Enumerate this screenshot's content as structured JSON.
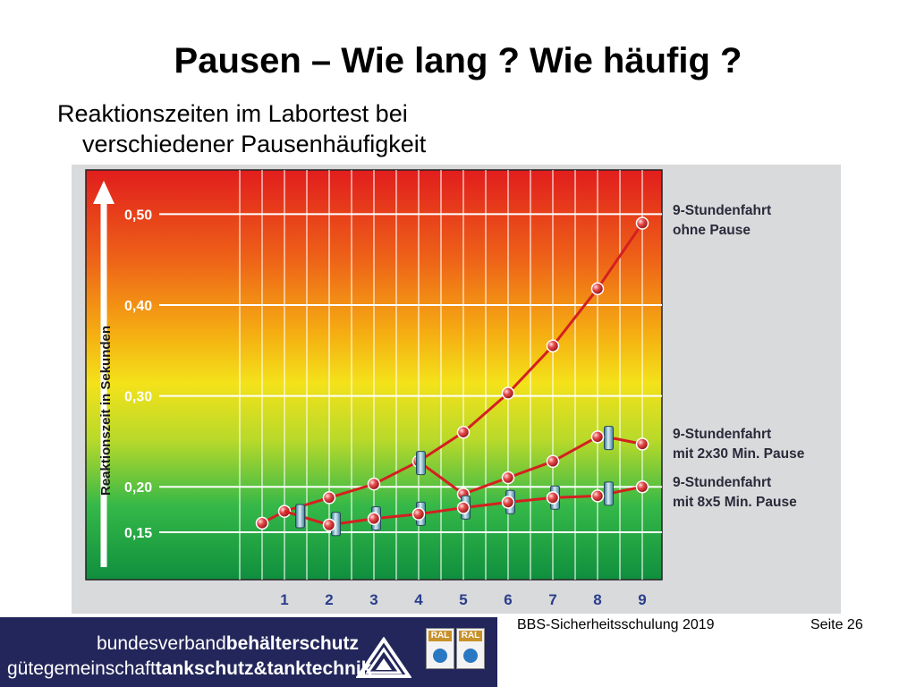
{
  "slide": {
    "title": "Pausen – Wie lang ? Wie häufig ?",
    "subtitle_line1": "Reaktionszeiten im Labortest bei",
    "subtitle_line2": "verschiedener Pausenhäufigkeit"
  },
  "footer": {
    "org_line1_light": "bundesverband",
    "org_line1_bold": "behälterschutz",
    "org_line2_light": "gütegemeinschaft",
    "org_line2_bold": "tankschutz&tanktechnik",
    "ral_badge_1": "RAL",
    "ral_badge_2": "RAL",
    "event": "BBS-Sicherheitsschulung 2019",
    "page": "Seite 26"
  },
  "chart_data": {
    "type": "line",
    "ylabel": "Reaktionszeit in Sekunden",
    "xlabel": "",
    "x": [
      1,
      2,
      3,
      4,
      5,
      6,
      7,
      8,
      9
    ],
    "x_start": 0.5,
    "ylim": [
      0.11,
      0.54
    ],
    "yticks": [
      0.15,
      0.2,
      0.3,
      0.4,
      0.5
    ],
    "ytick_labels": [
      "0,15",
      "0,20",
      "0,30",
      "0,40",
      "0,50"
    ],
    "grid": true,
    "background": "vertical gradient red (top) to yellow to green (bottom)",
    "series": [
      {
        "name": "9-Stundenfahrt ohne Pause",
        "label_lines": [
          "9-Stundenfahrt",
          "ohne Pause"
        ],
        "color": "#d42020",
        "points": [
          [
            0.5,
            0.16
          ],
          [
            1,
            0.173
          ],
          [
            2,
            0.188
          ],
          [
            3,
            0.203
          ],
          [
            4,
            0.228
          ],
          [
            5,
            0.26
          ],
          [
            6,
            0.303
          ],
          [
            7,
            0.355
          ],
          [
            8,
            0.418
          ],
          [
            9,
            0.49
          ]
        ],
        "pause_markers_at": []
      },
      {
        "name": "9-Stundenfahrt mit 2x30 Min. Pause",
        "label_lines": [
          "9-Stundenfahrt",
          "mit 2x30 Min. Pause"
        ],
        "color": "#d42020",
        "points": [
          [
            4,
            0.228
          ],
          [
            5,
            0.192
          ],
          [
            6,
            0.21
          ],
          [
            7,
            0.228
          ],
          [
            8,
            0.255
          ],
          [
            8.4,
            0.253
          ],
          [
            9,
            0.247
          ]
        ],
        "pause_markers_at": [
          4.05,
          8.25
        ]
      },
      {
        "name": "9-Stundenfahrt mit 8x5 Min. Pause",
        "label_lines": [
          "9-Stundenfahrt",
          "mit 8x5 Min. Pause"
        ],
        "color": "#d42020",
        "points": [
          [
            1,
            0.173
          ],
          [
            2,
            0.158
          ],
          [
            3,
            0.165
          ],
          [
            4,
            0.17
          ],
          [
            5,
            0.177
          ],
          [
            6,
            0.183
          ],
          [
            7,
            0.188
          ],
          [
            8,
            0.19
          ],
          [
            9,
            0.2
          ]
        ],
        "pause_markers_at": [
          1.35,
          2.15,
          3.05,
          4.05,
          5.05,
          6.05,
          7.05,
          8.25
        ]
      }
    ]
  }
}
